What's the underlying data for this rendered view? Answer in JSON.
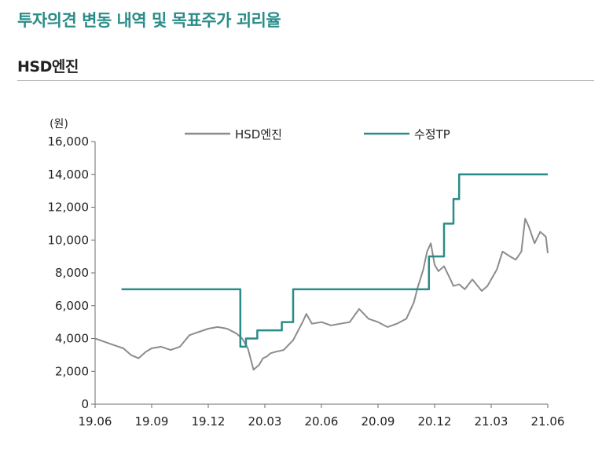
{
  "page": {
    "title": "투자의견 변동 내역 및 목표주가 괴리율",
    "company": "HSD엔진"
  },
  "chart_data": {
    "type": "line",
    "unit_label": "(원)",
    "ylim": [
      0,
      16000
    ],
    "y_ticks": [
      0,
      2000,
      4000,
      6000,
      8000,
      10000,
      12000,
      14000,
      16000
    ],
    "y_tick_labels": [
      "0",
      "2,000",
      "4,000",
      "6,000",
      "8,000",
      "10,000",
      "12,000",
      "14,000",
      "16,000"
    ],
    "x_tick_labels": [
      "19.06",
      "19.09",
      "19.12",
      "20.03",
      "20.06",
      "20.09",
      "20.12",
      "21.03",
      "21.06"
    ],
    "xlim_months": [
      0,
      24
    ],
    "grid": false,
    "legend_position": "top",
    "series": [
      {
        "name": "HSD엔진",
        "color": "#8c8c8c",
        "x": [
          0,
          0.5,
          1,
          1.5,
          1.9,
          2.3,
          2.7,
          3,
          3.5,
          4,
          4.5,
          5,
          5.5,
          6,
          6.5,
          7,
          7.5,
          7.8,
          8.1,
          8.4,
          8.7,
          8.9,
          9.1,
          9.3,
          9.6,
          10,
          10.5,
          11,
          11.2,
          11.5,
          12,
          12.5,
          13,
          13.5,
          14,
          14.5,
          15,
          15.5,
          16,
          16.5,
          16.9,
          17.1,
          17.4,
          17.6,
          17.8,
          18,
          18.2,
          18.5,
          18.8,
          19,
          19.3,
          19.6,
          20,
          20.5,
          20.8,
          21,
          21.3,
          21.6,
          22,
          22.3,
          22.6,
          22.8,
          23,
          23.3,
          23.6,
          23.9,
          24
        ],
        "y": [
          4000,
          3800,
          3600,
          3400,
          3000,
          2800,
          3200,
          3400,
          3500,
          3300,
          3500,
          4200,
          4400,
          4600,
          4700,
          4600,
          4300,
          4000,
          3400,
          2100,
          2400,
          2800,
          2900,
          3100,
          3200,
          3300,
          3900,
          5000,
          5500,
          4900,
          5000,
          4800,
          4900,
          5000,
          5800,
          5200,
          5000,
          4700,
          4900,
          5200,
          6200,
          7100,
          8200,
          9300,
          9800,
          8500,
          8100,
          8400,
          7700,
          7200,
          7300,
          7000,
          7600,
          6900,
          7200,
          7600,
          8200,
          9300,
          9000,
          8800,
          9300,
          11300,
          10800,
          9800,
          10500,
          10200,
          9200
        ]
      },
      {
        "name": "수정TP",
        "color": "#2a8c88",
        "x": [
          1.4,
          7.7,
          7.7,
          8.0,
          8.0,
          8.6,
          8.6,
          9.9,
          9.9,
          10.5,
          10.5,
          17.7,
          17.7,
          18.5,
          18.5,
          19.0,
          19.0,
          19.3,
          19.3,
          24.0
        ],
        "y": [
          7000,
          7000,
          3500,
          3500,
          4000,
          4000,
          4500,
          4500,
          5000,
          5000,
          7000,
          7000,
          9000,
          9000,
          11000,
          11000,
          12500,
          12500,
          14000,
          14000
        ]
      }
    ]
  }
}
